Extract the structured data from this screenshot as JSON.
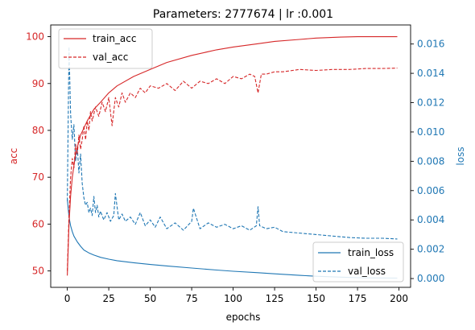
{
  "chart_data": {
    "type": "line",
    "title": "Parameters: 2777674 | lr :0.001",
    "xlabel": "epochs",
    "ylabel_left": "acc",
    "ylabel_right": "loss",
    "xlim": [
      -10,
      207
    ],
    "ylim_left": [
      46.5,
      102.5
    ],
    "ylim_right": [
      -0.0006,
      0.0173
    ],
    "x_ticks": [
      0,
      25,
      50,
      75,
      100,
      125,
      150,
      175,
      200
    ],
    "left_ticks": [
      50,
      60,
      70,
      80,
      90,
      100
    ],
    "right_ticks": [
      0.0,
      0.002,
      0.004,
      0.006,
      0.008,
      0.01,
      0.012,
      0.014,
      0.016
    ],
    "right_tick_labels": [
      "0.000",
      "0.002",
      "0.004",
      "0.006",
      "0.008",
      "0.010",
      "0.012",
      "0.014",
      "0.016"
    ],
    "colors": {
      "acc": "#d62728",
      "loss": "#1f77b4"
    },
    "legend_top_left": [
      "train_acc",
      "val_acc"
    ],
    "legend_bottom_right": [
      "train_loss",
      "val_loss"
    ],
    "series": [
      {
        "name": "train_acc",
        "axis": "left",
        "dash": false,
        "color": "#d62728",
        "x": [
          0,
          1,
          2,
          3,
          5,
          8,
          12,
          16,
          20,
          25,
          30,
          40,
          50,
          60,
          75,
          90,
          100,
          115,
          125,
          140,
          150,
          165,
          175,
          185,
          199
        ],
        "y": [
          49,
          60,
          66,
          70,
          75,
          79,
          82,
          84.5,
          86,
          88,
          89.5,
          91.5,
          93,
          94.5,
          96,
          97.2,
          97.8,
          98.5,
          99,
          99.4,
          99.7,
          99.9,
          100,
          100,
          100
        ]
      },
      {
        "name": "val_acc",
        "axis": "left",
        "dash": true,
        "color": "#d62728",
        "x": [
          0,
          1,
          2,
          3,
          4,
          5,
          6,
          7,
          8,
          9,
          10,
          11,
          12,
          13,
          14,
          15,
          17,
          19,
          21,
          23,
          25,
          27,
          29,
          31,
          33,
          35,
          38,
          41,
          44,
          47,
          50,
          55,
          60,
          65,
          70,
          75,
          80,
          85,
          90,
          95,
          100,
          105,
          110,
          113,
          115,
          117,
          120,
          125,
          130,
          140,
          150,
          160,
          170,
          180,
          190,
          199
        ],
        "y": [
          50,
          62,
          70,
          74,
          72,
          77,
          75,
          79,
          76,
          78,
          81,
          78,
          82,
          80,
          84,
          82,
          85,
          83,
          86,
          84,
          87,
          81,
          87,
          85,
          88,
          86,
          88,
          87,
          89,
          88,
          89.5,
          89,
          90,
          88.5,
          90.5,
          89,
          90.5,
          90,
          91,
          90,
          91.5,
          91,
          92,
          91.5,
          88,
          92,
          92,
          92.5,
          92.5,
          93,
          92.8,
          93,
          93,
          93.2,
          93.2,
          93.3
        ]
      },
      {
        "name": "train_loss",
        "axis": "right",
        "dash": false,
        "color": "#1f77b4",
        "x": [
          0,
          1,
          2,
          3,
          4,
          6,
          8,
          10,
          13,
          16,
          20,
          25,
          30,
          40,
          50,
          60,
          75,
          90,
          100,
          115,
          125,
          140,
          150,
          165,
          175,
          185,
          199
        ],
        "y": [
          0.0054,
          0.0042,
          0.0036,
          0.0032,
          0.0029,
          0.0025,
          0.0022,
          0.00195,
          0.00175,
          0.0016,
          0.00145,
          0.00132,
          0.00122,
          0.00108,
          0.00096,
          0.00086,
          0.00072,
          0.00058,
          0.0005,
          0.0004,
          0.00032,
          0.00022,
          0.00016,
          0.0001,
          6e-05,
          4e-05,
          3e-05
        ]
      },
      {
        "name": "val_loss",
        "axis": "right",
        "dash": true,
        "color": "#1f77b4",
        "x": [
          0,
          1,
          2,
          3,
          4,
          5,
          6,
          7,
          8,
          9,
          10,
          11,
          12,
          13,
          14,
          15,
          16,
          17,
          18,
          19,
          20,
          22,
          24,
          26,
          28,
          29,
          31,
          33,
          35,
          38,
          41,
          44,
          47,
          50,
          53,
          56,
          60,
          65,
          70,
          75,
          76,
          80,
          85,
          90,
          95,
          100,
          105,
          110,
          114,
          115,
          116,
          120,
          125,
          130,
          140,
          150,
          160,
          170,
          180,
          190,
          199
        ],
        "y": [
          0.0053,
          0.0158,
          0.0112,
          0.0095,
          0.0105,
          0.008,
          0.009,
          0.0072,
          0.0085,
          0.0065,
          0.0055,
          0.005,
          0.0052,
          0.0045,
          0.0048,
          0.0043,
          0.0056,
          0.0045,
          0.005,
          0.0042,
          0.0046,
          0.004,
          0.0045,
          0.0039,
          0.0043,
          0.0058,
          0.004,
          0.0044,
          0.0039,
          0.0042,
          0.0037,
          0.0045,
          0.0036,
          0.004,
          0.0035,
          0.0042,
          0.0034,
          0.0038,
          0.0033,
          0.0039,
          0.0048,
          0.0034,
          0.0038,
          0.0035,
          0.0037,
          0.0034,
          0.0036,
          0.0033,
          0.0036,
          0.0049,
          0.0036,
          0.0034,
          0.0035,
          0.0032,
          0.0031,
          0.003,
          0.0029,
          0.0028,
          0.00275,
          0.00275,
          0.0027
        ]
      }
    ]
  }
}
